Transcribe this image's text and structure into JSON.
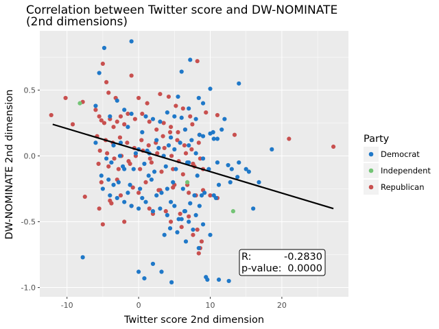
{
  "chart_data": {
    "type": "scatter",
    "title_line1": "Correlation between Twitter score and DW-NOMINATE",
    "title_line2": "(2nd dimensions)",
    "xlabel": "Twitter score 2nd dimension",
    "ylabel": "DW-NOMINATE 2nd dimension",
    "xlim": [
      -13.8,
      29.3
    ],
    "ylim": [
      -1.07,
      0.95
    ],
    "xticks": [
      -10,
      0,
      10,
      20
    ],
    "xtick_labels": [
      "-10",
      "0",
      "10",
      "20"
    ],
    "yticks": [
      -1.0,
      -0.5,
      0.0,
      0.5
    ],
    "ytick_labels": [
      "-1.0",
      "-0.5",
      "0.0",
      "0.5"
    ],
    "grid": true,
    "legend": {
      "title": "Party",
      "position": "right",
      "entries": [
        "Democrat",
        "Independent",
        "Republican"
      ]
    },
    "colors": {
      "Democrat": "#1f78c8",
      "Independent": "#74c476",
      "Republican": "#c8504f",
      "panel": "#ebebeb",
      "grid": "#ffffff",
      "line": "#000000"
    },
    "stats": {
      "r_label": "R:",
      "r_value": "-0.2830",
      "p_label": "p-value:",
      "p_value": "0.0000"
    },
    "trend_line": {
      "x": [
        -12,
        27.2
      ],
      "y": [
        0.24,
        -0.4
      ]
    },
    "series": [
      {
        "name": "Democrat",
        "x": [
          -4.8,
          -1.0,
          6.0,
          7.2,
          5.5,
          8.4,
          14.0,
          18.6,
          16.0,
          15.0,
          14.0,
          10.0,
          -5.5,
          -6.0,
          -3.0,
          -2.0,
          -4.0,
          -1.0,
          1.0,
          2.0,
          3.0,
          4.0,
          5.0,
          6.0,
          7.0,
          8.0,
          9.0,
          10.0,
          11.0,
          12.0,
          -1.5,
          0.5,
          2.5,
          4.5,
          6.5,
          8.5,
          10.5,
          12.5,
          -3.5,
          -2.5,
          0.0,
          1.5,
          3.5,
          5.0,
          7.0,
          8.0,
          9.0,
          11.0,
          13.0,
          -4.5,
          -3.8,
          -2.2,
          -0.7,
          0.8,
          2.2,
          3.8,
          5.2,
          6.8,
          8.2,
          9.8,
          11.2,
          12.8,
          -5.2,
          -4.2,
          -2.8,
          -1.2,
          0.2,
          1.8,
          3.2,
          4.8,
          6.2,
          7.8,
          9.2,
          10.8,
          -4.0,
          -3.0,
          -2.0,
          -1.0,
          0.0,
          1.0,
          2.0,
          3.0,
          4.0,
          5.0,
          6.0,
          7.0,
          8.0,
          9.0,
          10.0,
          -5.0,
          -3.5,
          -1.5,
          0.5,
          2.5,
          4.5,
          6.5,
          8.5,
          10.5,
          -7.8,
          0.0,
          0.8,
          2.0,
          3.2,
          4.6,
          5.4,
          6.6,
          7.6,
          8.4,
          9.4,
          9.6,
          11.2,
          12.6,
          13.8,
          15.4,
          16.8,
          -2.6,
          -0.4,
          1.2,
          2.8,
          4.2,
          5.8,
          7.4,
          9.0,
          10.4,
          11.6,
          3.6,
          4.4,
          5.6,
          6.4,
          7.2,
          8.8,
          -6.0,
          -2.0,
          1.4,
          4.0,
          7.0
        ],
        "y": [
          0.82,
          0.87,
          0.64,
          0.73,
          0.45,
          0.44,
          0.55,
          0.05,
          -0.4,
          -0.1,
          -0.05,
          0.51,
          0.63,
          0.38,
          0.42,
          0.35,
          0.3,
          0.32,
          0.3,
          0.28,
          0.26,
          0.33,
          0.3,
          0.29,
          0.36,
          0.28,
          0.4,
          0.17,
          0.13,
          0.28,
          0.22,
          0.18,
          0.12,
          0.14,
          0.2,
          0.16,
          0.13,
          -0.07,
          0.08,
          0.1,
          0.05,
          0.02,
          0.0,
          0.05,
          0.08,
          0.02,
          -0.02,
          -0.05,
          -0.1,
          -0.02,
          -0.05,
          -0.08,
          -0.1,
          -0.06,
          -0.12,
          -0.08,
          -0.1,
          -0.05,
          -0.15,
          -0.1,
          -0.22,
          -0.2,
          -0.15,
          -0.18,
          -0.2,
          -0.22,
          -0.25,
          -0.18,
          -0.28,
          -0.2,
          -0.25,
          -0.3,
          -0.28,
          -0.32,
          -0.3,
          -0.32,
          -0.35,
          -0.38,
          -0.4,
          -0.35,
          -0.42,
          -0.4,
          -0.45,
          -0.38,
          -0.48,
          -0.5,
          -0.45,
          -0.52,
          -0.6,
          -0.25,
          -0.22,
          -0.28,
          -0.32,
          -0.3,
          -0.35,
          -0.42,
          -0.38,
          -0.3,
          -0.77,
          -0.88,
          -0.93,
          -0.82,
          -0.88,
          -0.96,
          -0.58,
          -0.65,
          -0.56,
          -0.7,
          -0.92,
          -0.94,
          -0.94,
          -0.95,
          -0.16,
          -0.12,
          -0.2,
          0.0,
          0.02,
          0.04,
          0.06,
          0.08,
          0.1,
          0.12,
          0.15,
          0.18,
          0.2,
          -0.6,
          -0.55,
          -0.48,
          -0.42,
          -0.36,
          -0.3,
          0.1,
          -0.1,
          -0.15,
          -0.25,
          -0.05
        ]
      },
      {
        "name": "Independent",
        "x": [
          -8.2,
          13.2,
          6.8
        ],
        "y": [
          0.4,
          -0.42,
          -0.2
        ]
      },
      {
        "name": "Republican",
        "x": [
          -12.2,
          -10.2,
          -9.2,
          -7.8,
          -7.5,
          -5.0,
          -4.5,
          -4.2,
          -3.2,
          -1.0,
          0.0,
          1.2,
          3.0,
          4.2,
          5.2,
          6.2,
          7.2,
          8.2,
          9.4,
          11.0,
          13.4,
          21.0,
          27.2,
          -6.0,
          -5.5,
          -5.2,
          -4.8,
          -4.0,
          -3.5,
          -3.0,
          -2.5,
          -2.0,
          -1.5,
          -0.5,
          0.5,
          1.5,
          2.5,
          3.5,
          4.5,
          5.5,
          6.5,
          7.5,
          8.5,
          -5.8,
          -4.6,
          -3.6,
          -2.6,
          -1.6,
          -0.6,
          0.4,
          1.4,
          2.4,
          3.4,
          4.4,
          5.4,
          6.4,
          7.4,
          8.4,
          -5.4,
          -4.4,
          -3.4,
          -2.4,
          -1.4,
          -0.4,
          0.6,
          1.6,
          2.6,
          3.6,
          4.6,
          5.6,
          6.6,
          7.6,
          8.6,
          -5.6,
          -4.2,
          -2.8,
          -1.2,
          0.2,
          1.8,
          3.2,
          4.8,
          6.2,
          7.8,
          9.0,
          -5.2,
          -3.0,
          -0.8,
          1.0,
          3.0,
          5.0,
          7.0,
          8.0,
          9.0,
          10.0,
          11.0,
          -5.0,
          -2.0,
          2.0,
          4.5,
          6.0,
          7.6,
          8.2,
          8.8,
          -3.8,
          -1.0,
          1.5,
          3.8,
          5.8,
          7.0,
          8.6,
          -5.5,
          -4.0,
          -2.5,
          0.0,
          2.8,
          4.8,
          6.8,
          8.4
        ],
        "y": [
          0.31,
          0.44,
          0.24,
          0.41,
          -0.31,
          0.7,
          0.56,
          0.48,
          0.44,
          0.61,
          0.44,
          0.4,
          0.47,
          0.45,
          0.38,
          0.36,
          0.3,
          0.72,
          0.33,
          0.31,
          0.16,
          0.13,
          0.07,
          0.35,
          0.3,
          0.27,
          0.25,
          0.28,
          0.22,
          0.26,
          0.3,
          0.24,
          0.32,
          0.28,
          0.32,
          0.26,
          0.2,
          0.25,
          0.22,
          0.18,
          0.2,
          0.24,
          0.16,
          0.15,
          0.12,
          0.1,
          0.14,
          0.1,
          0.06,
          0.12,
          0.08,
          0.1,
          0.15,
          0.18,
          0.12,
          0.08,
          0.05,
          0.1,
          0.04,
          0.02,
          -0.02,
          0.0,
          -0.04,
          0.0,
          0.04,
          -0.02,
          0.02,
          0.06,
          0.0,
          -0.04,
          0.02,
          -0.06,
          -0.02,
          -0.06,
          -0.08,
          -0.1,
          -0.06,
          -0.1,
          -0.05,
          -0.12,
          -0.1,
          -0.14,
          -0.08,
          -0.1,
          -0.2,
          -0.18,
          -0.24,
          -0.2,
          -0.26,
          -0.22,
          -0.28,
          -0.3,
          -0.26,
          -0.3,
          -0.32,
          -0.52,
          -0.5,
          -0.44,
          -0.5,
          -0.54,
          -0.6,
          -0.56,
          -0.65,
          -0.36,
          -0.38,
          -0.4,
          -0.42,
          -0.44,
          -0.46,
          -0.7,
          -0.4,
          -0.34,
          -0.3,
          -0.28,
          -0.26,
          -0.24,
          -0.22,
          -0.74
        ]
      }
    ]
  }
}
